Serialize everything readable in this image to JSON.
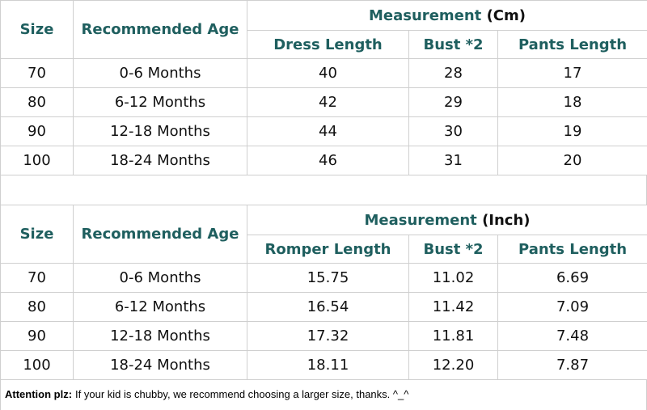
{
  "tables": [
    {
      "header": {
        "size": "Size",
        "age": "Recommended Age",
        "group": "Measurement",
        "unit": "(Cm)",
        "columns": [
          "Dress Length",
          "Bust *2",
          "Pants Length"
        ]
      },
      "rows": [
        [
          "70",
          "0-6 Months",
          "40",
          "28",
          "17"
        ],
        [
          "80",
          "6-12 Months",
          "42",
          "29",
          "18"
        ],
        [
          "90",
          "12-18 Months",
          "44",
          "30",
          "19"
        ],
        [
          "100",
          "18-24 Months",
          "46",
          "31",
          "20"
        ]
      ]
    },
    {
      "header": {
        "size": "Size",
        "age": "Recommended Age",
        "group": "Measurement",
        "unit": "(Inch)",
        "columns": [
          "Romper Length",
          "Bust *2",
          "Pants Length"
        ]
      },
      "rows": [
        [
          "70",
          "0-6 Months",
          "15.75",
          "11.02",
          "6.69"
        ],
        [
          "80",
          "6-12 Months",
          "16.54",
          "11.42",
          "7.09"
        ],
        [
          "90",
          "12-18 Months",
          "17.32",
          "11.81",
          "7.48"
        ],
        [
          "100",
          "18-24 Months",
          "18.11",
          "12.20",
          "7.87"
        ]
      ]
    }
  ],
  "note": {
    "label": "Attention plz:",
    "text": "If your kid is chubby, we recommend choosing a larger size, thanks. ^_^"
  }
}
